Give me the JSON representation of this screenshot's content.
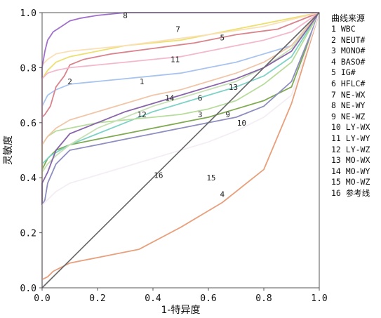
{
  "chart_data": {
    "type": "line",
    "xlabel": "1-特异度",
    "ylabel": "灵敏度",
    "xlim": [
      0.0,
      1.0
    ],
    "ylim": [
      0.0,
      1.0
    ],
    "x_ticks": [
      "0.0",
      "0.2",
      "0.4",
      "0.6",
      "0.8",
      "1.0"
    ],
    "y_ticks": [
      "0.0",
      "0.2",
      "0.4",
      "0.6",
      "0.8",
      "1.0"
    ],
    "grid": false,
    "legend": {
      "title": "曲线来源",
      "placement": "right",
      "entries": [
        "1 WBC",
        "2 NEUT#",
        "3 MONO#",
        "4 BASO#",
        "5 IG#",
        "6 HFLC#",
        "7 NE-WX",
        "8 NE-WY",
        "9 NE-WZ",
        "10 LY-WX",
        "11 LY-WY",
        "12 LY-WZ",
        "13 MO-WX",
        "14 MO-WY",
        "15 MO-WZ",
        "16 参考线"
      ]
    },
    "series": [
      {
        "label": "1",
        "color": "#a8c4ee",
        "label_at": [
          0.36,
          0.75
        ],
        "points": [
          [
            0,
            0
          ],
          [
            0,
            0.66
          ],
          [
            0.02,
            0.7
          ],
          [
            0.05,
            0.72
          ],
          [
            0.1,
            0.74
          ],
          [
            0.2,
            0.75
          ],
          [
            0.3,
            0.76
          ],
          [
            0.4,
            0.77
          ],
          [
            0.5,
            0.78
          ],
          [
            0.6,
            0.8
          ],
          [
            0.7,
            0.82
          ],
          [
            0.8,
            0.85
          ],
          [
            0.9,
            0.88
          ],
          [
            1,
            1
          ]
        ]
      },
      {
        "label": "2",
        "color": "#d9848c",
        "label_at": [
          0.1,
          0.75
        ],
        "points": [
          [
            0,
            0
          ],
          [
            0,
            0.62
          ],
          [
            0.01,
            0.63
          ],
          [
            0.03,
            0.66
          ],
          [
            0.05,
            0.73
          ],
          [
            0.08,
            0.77
          ],
          [
            0.1,
            0.81
          ],
          [
            0.15,
            0.83
          ],
          [
            0.25,
            0.85
          ],
          [
            0.4,
            0.87
          ],
          [
            0.55,
            0.89
          ],
          [
            0.7,
            0.92
          ],
          [
            0.85,
            0.94
          ],
          [
            1,
            1
          ]
        ]
      },
      {
        "label": "3",
        "color": "#7faa52",
        "label_at": [
          0.57,
          0.63
        ],
        "points": [
          [
            0,
            0
          ],
          [
            0,
            0.43
          ],
          [
            0.02,
            0.47
          ],
          [
            0.05,
            0.5
          ],
          [
            0.1,
            0.52
          ],
          [
            0.2,
            0.54
          ],
          [
            0.3,
            0.56
          ],
          [
            0.4,
            0.58
          ],
          [
            0.5,
            0.6
          ],
          [
            0.6,
            0.62
          ],
          [
            0.7,
            0.65
          ],
          [
            0.8,
            0.68
          ],
          [
            0.9,
            0.73
          ],
          [
            1,
            1
          ]
        ]
      },
      {
        "label": "4",
        "color": "#e8a07c",
        "label_at": [
          0.65,
          0.34
        ],
        "points": [
          [
            0,
            0.03
          ],
          [
            0.02,
            0.04
          ],
          [
            0.04,
            0.06
          ],
          [
            0.1,
            0.09
          ],
          [
            0.25,
            0.12
          ],
          [
            0.35,
            0.14
          ],
          [
            0.5,
            0.22
          ],
          [
            0.65,
            0.31
          ],
          [
            0.8,
            0.43
          ],
          [
            0.9,
            0.67
          ],
          [
            1,
            1
          ]
        ]
      },
      {
        "label": "5",
        "color": "#ece070",
        "label_at": [
          0.65,
          0.91
        ],
        "points": [
          [
            0,
            0
          ],
          [
            0,
            0.76
          ],
          [
            0.02,
            0.79
          ],
          [
            0.05,
            0.82
          ],
          [
            0.1,
            0.84
          ],
          [
            0.2,
            0.86
          ],
          [
            0.3,
            0.88
          ],
          [
            0.4,
            0.89
          ],
          [
            0.5,
            0.9
          ],
          [
            0.6,
            0.92
          ],
          [
            0.7,
            0.94
          ],
          [
            0.85,
            0.97
          ],
          [
            1,
            1
          ]
        ]
      },
      {
        "label": "6",
        "color": "#7fd2c6",
        "label_at": [
          0.57,
          0.69
        ],
        "points": [
          [
            0,
            0
          ],
          [
            0,
            0.45
          ],
          [
            0.03,
            0.48
          ],
          [
            0.1,
            0.52
          ],
          [
            0.2,
            0.56
          ],
          [
            0.3,
            0.6
          ],
          [
            0.4,
            0.64
          ],
          [
            0.5,
            0.67
          ],
          [
            0.6,
            0.7
          ],
          [
            0.7,
            0.73
          ],
          [
            0.8,
            0.77
          ],
          [
            0.9,
            0.84
          ],
          [
            1,
            1
          ]
        ]
      },
      {
        "label": "7",
        "color": "#fae0b6",
        "label_at": [
          0.49,
          0.94
        ],
        "points": [
          [
            0,
            0
          ],
          [
            0,
            0.81
          ],
          [
            0.02,
            0.83
          ],
          [
            0.05,
            0.85
          ],
          [
            0.1,
            0.86
          ],
          [
            0.2,
            0.87
          ],
          [
            0.3,
            0.88
          ],
          [
            0.45,
            0.9
          ],
          [
            0.6,
            0.92
          ],
          [
            0.8,
            0.95
          ],
          [
            1,
            1
          ]
        ]
      },
      {
        "label": "8",
        "color": "#a070cc",
        "label_at": [
          0.3,
          0.99
        ],
        "points": [
          [
            0,
            0
          ],
          [
            0,
            0.8
          ],
          [
            0.01,
            0.86
          ],
          [
            0.02,
            0.9
          ],
          [
            0.04,
            0.93
          ],
          [
            0.07,
            0.95
          ],
          [
            0.1,
            0.97
          ],
          [
            0.14,
            0.98
          ],
          [
            0.2,
            0.99
          ],
          [
            0.3,
            1.0
          ],
          [
            1,
            1
          ]
        ]
      },
      {
        "label": "9",
        "color": "#b8dc9c",
        "label_at": [
          0.67,
          0.63
        ],
        "points": [
          [
            0,
            0
          ],
          [
            0,
            0.52
          ],
          [
            0.02,
            0.55
          ],
          [
            0.05,
            0.57
          ],
          [
            0.1,
            0.58
          ],
          [
            0.2,
            0.6
          ],
          [
            0.3,
            0.61
          ],
          [
            0.4,
            0.62
          ],
          [
            0.5,
            0.63
          ],
          [
            0.6,
            0.65
          ],
          [
            0.7,
            0.68
          ],
          [
            0.8,
            0.74
          ],
          [
            0.9,
            0.82
          ],
          [
            1,
            1
          ]
        ]
      },
      {
        "label": "10",
        "color": "#8e8ec0",
        "label_at": [
          0.72,
          0.6
        ],
        "points": [
          [
            0,
            0
          ],
          [
            0,
            0.3
          ],
          [
            0.01,
            0.32
          ],
          [
            0.02,
            0.38
          ],
          [
            0.05,
            0.45
          ],
          [
            0.1,
            0.5
          ],
          [
            0.2,
            0.52
          ],
          [
            0.3,
            0.54
          ],
          [
            0.4,
            0.56
          ],
          [
            0.5,
            0.58
          ],
          [
            0.6,
            0.6
          ],
          [
            0.7,
            0.62
          ],
          [
            0.8,
            0.66
          ],
          [
            0.9,
            0.75
          ],
          [
            1,
            1
          ]
        ]
      },
      {
        "label": "11",
        "color": "#f4b8cc",
        "label_at": [
          0.48,
          0.83
        ],
        "points": [
          [
            0,
            0
          ],
          [
            0,
            0.76
          ],
          [
            0.02,
            0.78
          ],
          [
            0.05,
            0.79
          ],
          [
            0.1,
            0.8
          ],
          [
            0.2,
            0.81
          ],
          [
            0.3,
            0.82
          ],
          [
            0.4,
            0.83
          ],
          [
            0.5,
            0.84
          ],
          [
            0.6,
            0.86
          ],
          [
            0.7,
            0.88
          ],
          [
            0.8,
            0.9
          ],
          [
            0.9,
            0.93
          ],
          [
            1,
            1
          ]
        ]
      },
      {
        "label": "12",
        "color": "#c7e0b4",
        "label_at": [
          0.36,
          0.63
        ],
        "points": [
          [
            0,
            0
          ],
          [
            0,
            0.42
          ],
          [
            0.02,
            0.45
          ],
          [
            0.05,
            0.48
          ],
          [
            0.1,
            0.52
          ],
          [
            0.2,
            0.58
          ],
          [
            0.3,
            0.62
          ],
          [
            0.4,
            0.66
          ],
          [
            0.5,
            0.69
          ],
          [
            0.6,
            0.72
          ],
          [
            0.7,
            0.75
          ],
          [
            0.8,
            0.8
          ],
          [
            0.9,
            0.87
          ],
          [
            1,
            1
          ]
        ]
      },
      {
        "label": "13",
        "color": "#f0c6a8",
        "label_at": [
          0.69,
          0.73
        ],
        "points": [
          [
            0,
            0
          ],
          [
            0,
            0.52
          ],
          [
            0.02,
            0.55
          ],
          [
            0.05,
            0.58
          ],
          [
            0.1,
            0.61
          ],
          [
            0.2,
            0.64
          ],
          [
            0.3,
            0.67
          ],
          [
            0.4,
            0.7
          ],
          [
            0.5,
            0.72
          ],
          [
            0.6,
            0.75
          ],
          [
            0.7,
            0.78
          ],
          [
            0.8,
            0.82
          ],
          [
            0.9,
            0.88
          ],
          [
            1,
            1
          ]
        ]
      },
      {
        "label": "14",
        "color": "#8864aa",
        "label_at": [
          0.46,
          0.69
        ],
        "points": [
          [
            0,
            0
          ],
          [
            0,
            0.38
          ],
          [
            0.02,
            0.42
          ],
          [
            0.05,
            0.5
          ],
          [
            0.1,
            0.56
          ],
          [
            0.2,
            0.6
          ],
          [
            0.3,
            0.64
          ],
          [
            0.4,
            0.67
          ],
          [
            0.5,
            0.7
          ],
          [
            0.6,
            0.73
          ],
          [
            0.7,
            0.76
          ],
          [
            0.8,
            0.8
          ],
          [
            0.9,
            0.86
          ],
          [
            1,
            1
          ]
        ]
      },
      {
        "label": "15",
        "color": "#f4eef4",
        "label_at": [
          0.61,
          0.4
        ],
        "points": [
          [
            0,
            0
          ],
          [
            0,
            0.3
          ],
          [
            0.05,
            0.35
          ],
          [
            0.1,
            0.38
          ],
          [
            0.2,
            0.41
          ],
          [
            0.3,
            0.44
          ],
          [
            0.4,
            0.47
          ],
          [
            0.5,
            0.5
          ],
          [
            0.6,
            0.53
          ],
          [
            0.7,
            0.57
          ],
          [
            0.8,
            0.62
          ],
          [
            0.9,
            0.7
          ],
          [
            1,
            1
          ]
        ]
      },
      {
        "label": "16",
        "color": "#666666",
        "label_at": [
          0.42,
          0.41
        ],
        "width": 1.6,
        "points": [
          [
            0,
            0
          ],
          [
            1,
            1
          ]
        ]
      }
    ]
  }
}
